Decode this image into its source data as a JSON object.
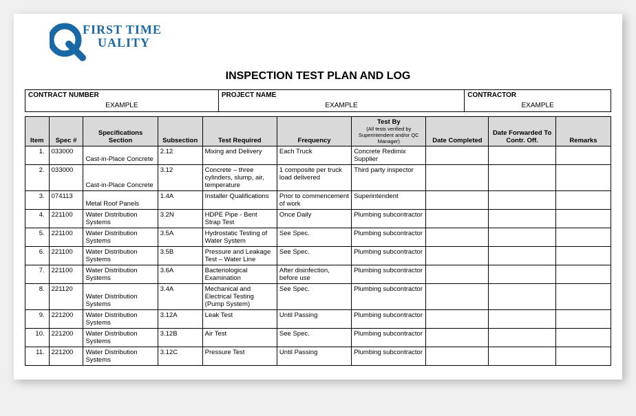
{
  "logo": {
    "line1": "FIRST TIME",
    "line2": "UALITY",
    "color": "#1868a6"
  },
  "title": "INSPECTION TEST PLAN AND LOG",
  "header": {
    "contract_label": "CONTRACT NUMBER",
    "contract_value": "EXAMPLE",
    "project_label": "PROJECT NAME",
    "project_value": "EXAMPLE",
    "contractor_label": "CONTRACTOR",
    "contractor_value": "EXAMPLE"
  },
  "columns": {
    "item": "Item",
    "spec": "Spec #",
    "section": "Specifications Section",
    "subsection": "Subsection",
    "test_required": "Test Required",
    "frequency": "Frequency",
    "test_by": "Test By",
    "test_by_note": "(All tests verified by Superintendent and/or QC Manager)",
    "date_completed": "Date Completed",
    "date_forwarded": "Date Forwarded To Contr. Off.",
    "remarks": "Remarks"
  },
  "rows": [
    {
      "item": "1.",
      "spec": "033000",
      "section": "Cast-in-Place Concrete",
      "sub": "2.12",
      "req": "Mixing and Delivery",
      "freq": "Each Truck",
      "by": "Concrete Redimix Supplier",
      "dc": "",
      "df": "",
      "rem": ""
    },
    {
      "item": "2.",
      "spec": "033000",
      "section": "Cast-in-Place Concrete",
      "sub": "3.12",
      "req": "Concrete – three cylinders, slump, air, temperature",
      "freq": "1 composite per truck load delivered",
      "by": "Third party inspector",
      "dc": "",
      "df": "",
      "rem": ""
    },
    {
      "item": "3.",
      "spec": "074113",
      "section": "Metal Roof Panels",
      "sub": "1.4A",
      "req": "Installer Qualifications",
      "freq": "Prior to commencement of work",
      "by": "Superintendent",
      "dc": "",
      "df": "",
      "rem": ""
    },
    {
      "item": "4.",
      "spec": "221100",
      "section": "Water Distribution Systems",
      "sub": "3.2N",
      "req": "HDPE Pipe - Bent Strap Test",
      "freq": "Once Daily",
      "by": "Plumbing subcontractor",
      "dc": "",
      "df": "",
      "rem": ""
    },
    {
      "item": "5.",
      "spec": "221100",
      "section": "Water Distribution Systems",
      "sub": "3.5A",
      "req": "Hydrostatic Testing of Water System",
      "freq": "See Spec.",
      "by": "Plumbing subcontractor",
      "dc": "",
      "df": "",
      "rem": ""
    },
    {
      "item": "6.",
      "spec": "221100",
      "section": "Water Distribution Systems",
      "sub": "3.5B",
      "req": "Pressure and Leakage Test – Water Line",
      "freq": "See Spec.",
      "by": "Plumbing subcontractor",
      "dc": "",
      "df": "",
      "rem": ""
    },
    {
      "item": "7.",
      "spec": "221100",
      "section": "Water Distribution Systems",
      "sub": "3.6A",
      "req": "Bacteriological Examination",
      "freq": "After disinfection, before use",
      "by": "Plumbing subcontractor",
      "dc": "",
      "df": "",
      "rem": ""
    },
    {
      "item": "8.",
      "spec": "221120",
      "section": "Water Distribution Systems",
      "sub": "3.4A",
      "req": "Mechanical and Electrical Testing (Pump System)",
      "freq": "See Spec.",
      "by": "Plumbing subcontractor",
      "dc": "",
      "df": "",
      "rem": ""
    },
    {
      "item": "9.",
      "spec": "221200",
      "section": "Water Distribution Systems",
      "sub": "3.12A",
      "req": "Leak Test",
      "freq": "Until Passing",
      "by": "Plumbing subcontractor",
      "dc": "",
      "df": "",
      "rem": ""
    },
    {
      "item": "10.",
      "spec": "221200",
      "section": "Water Distribution Systems",
      "sub": "3.12B",
      "req": "Air Test",
      "freq": "See Spec.",
      "by": "Plumbing subcontractor",
      "dc": "",
      "df": "",
      "rem": ""
    },
    {
      "item": "11.",
      "spec": "221200",
      "section": "Water Distribution Systems",
      "sub": "3.12C",
      "req": "Pressure Test",
      "freq": "Until Passing",
      "by": "Plumbing subcontractor",
      "dc": "",
      "df": "",
      "rem": ""
    }
  ]
}
